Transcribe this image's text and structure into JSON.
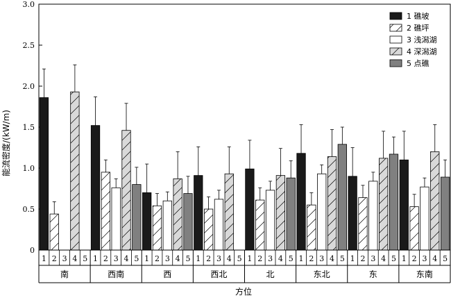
{
  "chart_data": {
    "type": "bar",
    "xlabel": "方位",
    "ylabel": "能流密度/(kW/m)",
    "ylim": [
      0,
      3.0
    ],
    "yticks": [
      "0",
      "0.5",
      "1.0",
      "1.5",
      "2.0",
      "2.5",
      "3.0"
    ],
    "ytick_values": [
      0,
      0.5,
      1.0,
      1.5,
      2.0,
      2.5,
      3.0
    ],
    "categories": [
      "南",
      "西南",
      "西",
      "西北",
      "北",
      "东北",
      "东",
      "东南"
    ],
    "sub_labels": [
      "1",
      "2",
      "3",
      "4",
      "5"
    ],
    "legend_position": "top-right",
    "series": [
      {
        "name": "1 礁坡",
        "color": "#1a1a1a",
        "pattern": "solid",
        "values": [
          1.86,
          1.52,
          0.7,
          0.91,
          0.99,
          1.18,
          0.9,
          1.1
        ],
        "errors": [
          0.35,
          0.35,
          0.35,
          0.35,
          0.35,
          0.35,
          0.35,
          0.35
        ]
      },
      {
        "name": "2 礁坪",
        "color": "#ffffff",
        "pattern": "hatch",
        "values": [
          0.44,
          0.95,
          0.54,
          0.5,
          0.61,
          0.55,
          0.64,
          0.53
        ],
        "errors": [
          0.15,
          0.15,
          0.15,
          0.15,
          0.15,
          0.15,
          0.15,
          0.15
        ]
      },
      {
        "name": "3 浅潟湖",
        "color": "#ffffff",
        "pattern": "open",
        "values": [
          null,
          0.76,
          0.6,
          0.62,
          0.73,
          0.93,
          0.84,
          0.77
        ],
        "errors": [
          0,
          0.11,
          0.11,
          0.11,
          0.11,
          0.11,
          0.11,
          0.11
        ]
      },
      {
        "name": "4 深潟湖",
        "color": "#d9d9d9",
        "pattern": "hatch",
        "values": [
          1.93,
          1.46,
          0.87,
          0.93,
          0.91,
          1.14,
          1.12,
          1.2
        ],
        "errors": [
          0.33,
          0.33,
          0.33,
          0.33,
          0.33,
          0.33,
          0.33,
          0.33
        ]
      },
      {
        "name": "5 点礁",
        "color": "#808080",
        "pattern": "solid",
        "values": [
          null,
          0.8,
          0.69,
          null,
          0.88,
          1.29,
          1.17,
          0.89
        ],
        "errors": [
          0,
          0.21,
          0.21,
          0,
          0.21,
          0.21,
          0.21,
          0.21
        ]
      }
    ]
  }
}
